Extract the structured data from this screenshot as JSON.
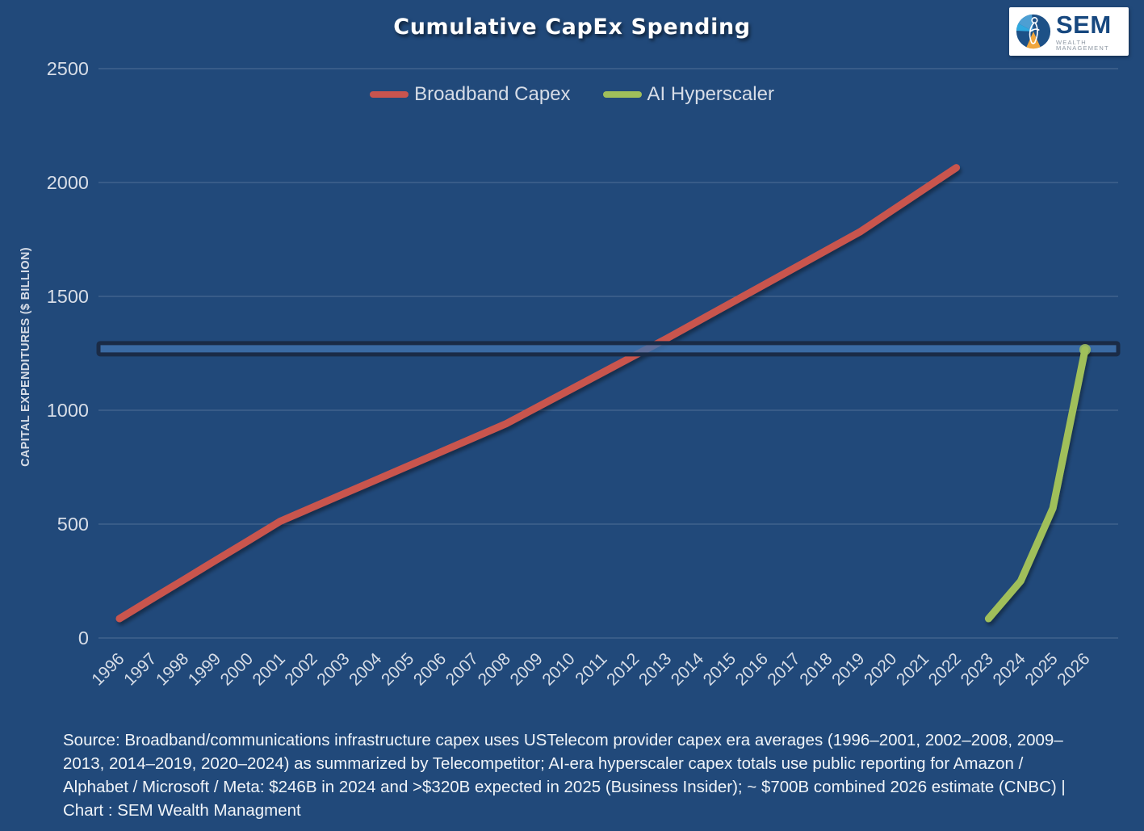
{
  "title": "Cumulative CapEx Spending",
  "logo": {
    "name": "SEM",
    "subtitle": "WEALTH MANAGEMENT"
  },
  "colors": {
    "background": "#21497A",
    "grid": "rgba(220,229,240,0.20)",
    "tick_text": "#D7DDE7",
    "broadband": "#C9544E",
    "ai": "#A0BF5A",
    "band_fill": "#4173AE",
    "band_border": "#1A2B46"
  },
  "legend": {
    "items": [
      {
        "label": "Broadband Capex",
        "color_key": "broadband"
      },
      {
        "label": "AI Hyperscaler",
        "color_key": "ai"
      }
    ]
  },
  "source_lines": [
    "Source: Broadband/communications infrastructure capex uses USTelecom provider capex era averages (1996–2001, 2002–2008, 2009–",
    "2013, 2014–2019, 2020–2024) as summarized by Telecompetitor;  AI-era hyperscaler capex totals use public reporting for Amazon /",
    "Alphabet / Microsoft / Meta: $246B in 2024 and >$320B expected in 2025 (Business Insider); ~ $700B combined 2026 estimate (CNBC) |",
    "Chart : SEM Wealth Managment"
  ],
  "chart_data": {
    "type": "line",
    "title": "Cumulative CapEx Spending",
    "ylabel": "CAPITAL EXPENDITURES ($ BILLION)",
    "ylim": [
      0,
      2500
    ],
    "y_ticks": [
      0,
      500,
      1000,
      1500,
      2000,
      2500
    ],
    "grid": "horizontal",
    "legend_position": "top-center",
    "x_categories": [
      "1996",
      "1997",
      "1998",
      "1999",
      "2000",
      "2001",
      "2002",
      "2003",
      "2004",
      "2005",
      "2006",
      "2007",
      "2008",
      "2009",
      "2010",
      "2011",
      "2012",
      "2013",
      "2014",
      "2015",
      "2016",
      "2017",
      "2018",
      "2019",
      "2020",
      "2021",
      "2022",
      "2023",
      "2024",
      "2025",
      "2026"
    ],
    "series": [
      {
        "name": "Broadband Capex",
        "color_key": "broadband",
        "start_year": 1996,
        "values": [
          85,
          171,
          256,
          342,
          427,
          513,
          574,
          635,
          696,
          757,
          818,
          879,
          940,
          1015,
          1090,
          1165,
          1240,
          1315,
          1393,
          1471,
          1549,
          1627,
          1705,
          1783,
          1877,
          1971,
          2065
        ],
        "end_marker": false
      },
      {
        "name": "AI Hyperscaler",
        "color_key": "ai",
        "start_year": 2023,
        "values": [
          85,
          250,
          570,
          1266
        ],
        "end_marker": true
      }
    ],
    "highlight_band": {
      "value": 1270
    }
  }
}
